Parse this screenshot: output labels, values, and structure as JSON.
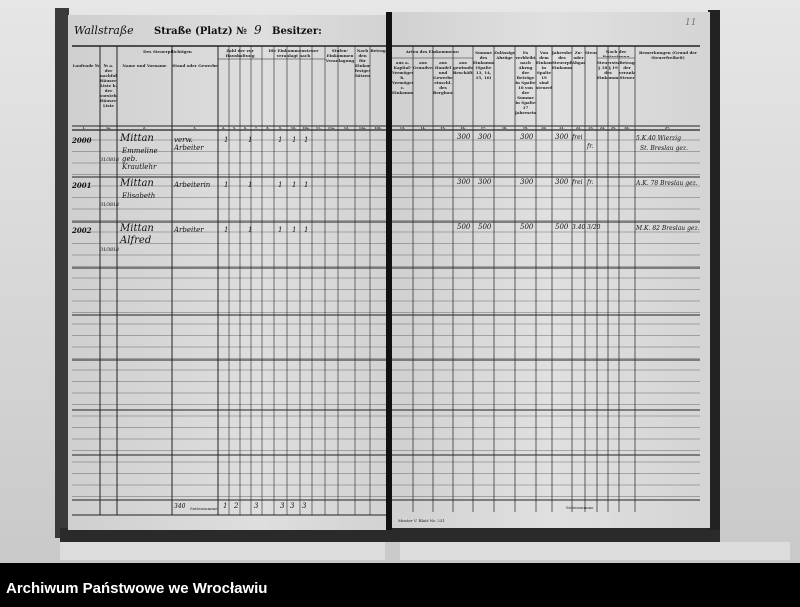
{
  "document": {
    "left_page": {
      "street_handwritten": "Wallstraße",
      "street_label": "Straße (Platz) №",
      "house_number": "9",
      "owner_label": "Besitzer:",
      "column_headers": [
        "Laufende №",
        "№ a. der nachfolgenden Häuser-Liste b. der vorstehenden Häuser-Liste",
        "Name und Vorname",
        "Stand oder Gewerbe",
        "Zahl der zur Haushaltung gehörigen Personen über 14 Jahre",
        "Des Steuerpflichtigen",
        "Die Einkommensteuer veranlagt nach",
        "Stufen-Einkommen Veranlagung",
        "Nach den für Einkommensteuer festgesetzten Sätzen",
        "Betrag"
      ],
      "group_header_taxpayer": "Des Steuerpflichtigen",
      "column_numbers": [
        "1.",
        "1a.",
        "2.",
        "3.",
        "4.",
        "5.",
        "6.",
        "7.",
        "8.",
        "9.",
        "10.",
        "10a.",
        "11.",
        "11a.",
        "12.",
        "12a.",
        "12b."
      ],
      "entries": [
        {
          "number": "2000",
          "ref": "31/3818",
          "name": "Mittan",
          "name_line2": "Emmeline geb. Krautlehr",
          "occupation": "verw. Arbeiter",
          "marks": [
            "1",
            "1",
            "1",
            "1",
            "1"
          ]
        },
        {
          "number": "2001",
          "ref": "31/3818",
          "name": "Mittan",
          "name_line2": "Elisabeth",
          "occupation": "Arbeiterin",
          "marks": [
            "1",
            "1",
            "1",
            "1",
            "1"
          ]
        },
        {
          "number": "2002",
          "ref": "31/3818",
          "name": "Mittan Alfred",
          "name_line2": "",
          "occupation": "Arbeiter",
          "marks": [
            "1",
            "1",
            "1",
            "1",
            "1"
          ]
        }
      ],
      "totals_label": "Seitensumme",
      "totals_prefix": "340",
      "totals": [
        "1",
        "2",
        "3",
        "3",
        "3",
        "3"
      ]
    },
    "right_page": {
      "page_number": "11",
      "group_header_income": "Arten des Einkommens:",
      "group_header_tax": "Nach der Festsetzung",
      "remarks_header": "Bemerkungen (Grund der Steuerfreiheit)",
      "column_headers": [
        "aus a. Kapital-Vermögen b. Vermögen c. Einkommen",
        "aus Grundvermögen",
        "aus Handel und Gewerbe einschl. des Bergbaues",
        "aus gewinnbringender Beschäftigung",
        "Summe des Einkommens (Spalte 13, 14, 15, 16)",
        "Zulässige Abzüge",
        "Es verbleibt nach Abzug der Beträge in Spalte 18 von der Summe in Spalte 17 Jahreseinkommen",
        "Von dem Einkommen in Spalte 19 sind steuerfrei",
        "Jahresbetrag des Steuerpflichtigen Einkommens",
        "Zu- oder Abgang",
        "Steuersatz",
        "Steuerstufe § 18 § 19 des Einkommensteuergesetzes",
        "Betrag der veranlagten Steuer",
        "Bemerkungen"
      ],
      "column_numbers": [
        "13.",
        "14.",
        "15.",
        "16.",
        "17.",
        "18.",
        "19.",
        "20.",
        "21.",
        "22.",
        "23.",
        "24.",
        "25.",
        "26.",
        "27."
      ],
      "entries": [
        {
          "income": "300",
          "sum": "300",
          "remaining": "300",
          "annual": "300",
          "rate": "frei",
          "note": "fr.",
          "remark": "5.K.40 Wierzig",
          "remark_line2": "St. Breslau gez."
        },
        {
          "income": "300",
          "sum": "300",
          "remaining": "300",
          "annual": "300",
          "rate": "frei",
          "note": "fr.",
          "remark": "A.K. 78 Breslau gez.",
          "remark_line2": ""
        },
        {
          "income": "500",
          "sum": "500",
          "remaining": "500",
          "annual": "500",
          "rate": "3.40",
          "note": "3/20",
          "remark": "M.K. 82 Breslau gez.",
          "remark_line2": ""
        }
      ],
      "footer_small_print": "Muster V. Blatt Nr. 231",
      "footer_label": "Seitensumme"
    }
  },
  "footer": {
    "archive_name": "Archiwum Państwowe we Wrocławiu"
  },
  "colors": {
    "ink": "#111111",
    "paper": "#d8d8d8",
    "footer_bg": "#000000",
    "footer_text": "#ffffff"
  }
}
